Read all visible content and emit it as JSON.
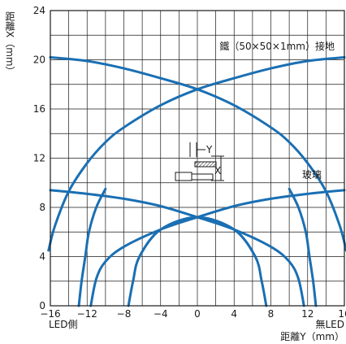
{
  "chart_data": {
    "type": "line",
    "title": "",
    "xlabel": "距離Y（mm）",
    "ylabel": "距離X（mm）",
    "x_left_note": "LED側",
    "x_right_note": "無LED",
    "xlim": [
      -16,
      16
    ],
    "ylim": [
      0,
      24
    ],
    "xticks": [
      "−16",
      "−12",
      "−8",
      "−4",
      "0",
      "4",
      "8",
      "12",
      "16"
    ],
    "yticks": [
      "0",
      "4",
      "8",
      "12",
      "16",
      "20",
      "24"
    ],
    "grid": true,
    "line_color": "#1a6fb3",
    "series": [
      {
        "name": "鐵（50×50×1mm）接地",
        "curves": [
          {
            "points": [
              [
                -16,
                20.2
              ],
              [
                -12,
                19.9
              ],
              [
                -8,
                19.3
              ],
              [
                -4,
                18.5
              ],
              [
                0,
                17.6
              ],
              [
                4,
                16.3
              ],
              [
                8,
                14.5
              ],
              [
                10,
                13.3
              ],
              [
                12,
                11.6
              ],
              [
                14,
                9.3
              ],
              [
                15.5,
                6.5
              ],
              [
                16.2,
                4.5
              ]
            ]
          },
          {
            "points": [
              [
                16,
                20.2
              ],
              [
                12,
                19.9
              ],
              [
                8,
                19.3
              ],
              [
                4,
                18.5
              ],
              [
                0,
                17.6
              ],
              [
                -4,
                16.3
              ],
              [
                -8,
                14.5
              ],
              [
                -10,
                13.3
              ],
              [
                -12,
                11.6
              ],
              [
                -14,
                9.3
              ],
              [
                -15.5,
                6.5
              ],
              [
                -16.2,
                4.5
              ]
            ]
          },
          {
            "points": [
              [
                -10,
                9.5
              ],
              [
                -11,
                8
              ],
              [
                -11.8,
                6
              ],
              [
                -12.2,
                4
              ],
              [
                -12.6,
                2
              ],
              [
                -12.9,
                0
              ]
            ]
          },
          {
            "points": [
              [
                -7.5,
                0
              ],
              [
                -7,
                2
              ],
              [
                -6.3,
                4
              ],
              [
                -4,
                6.2
              ],
              [
                0,
                7.2
              ],
              [
                4,
                6.2
              ],
              [
                6.3,
                4
              ],
              [
                7,
                2
              ],
              [
                7.5,
                0
              ]
            ]
          },
          {
            "points": [
              [
                10,
                9.5
              ],
              [
                11,
                8
              ],
              [
                11.8,
                6
              ],
              [
                12.2,
                4
              ],
              [
                12.6,
                2
              ],
              [
                12.9,
                0
              ]
            ]
          }
        ]
      },
      {
        "name": "玻璃",
        "curves": [
          {
            "points": [
              [
                -16,
                9.4
              ],
              [
                -12,
                9.1
              ],
              [
                -8,
                8.7
              ],
              [
                -4,
                8.1
              ],
              [
                0,
                7.2
              ],
              [
                4,
                6.2
              ],
              [
                8,
                4.8
              ],
              [
                10,
                3.6
              ],
              [
                11,
                2.2
              ],
              [
                11.6,
                0
              ]
            ]
          },
          {
            "points": [
              [
                16,
                9.4
              ],
              [
                12,
                9.1
              ],
              [
                8,
                8.7
              ],
              [
                4,
                8.1
              ],
              [
                0,
                7.2
              ],
              [
                -4,
                6.2
              ],
              [
                -8,
                4.8
              ],
              [
                -10,
                3.6
              ],
              [
                -11,
                2.2
              ],
              [
                -11.6,
                0
              ]
            ]
          }
        ]
      }
    ],
    "annotations": {
      "x_axis_symbol": "X",
      "y_axis_symbol": "Y"
    }
  }
}
